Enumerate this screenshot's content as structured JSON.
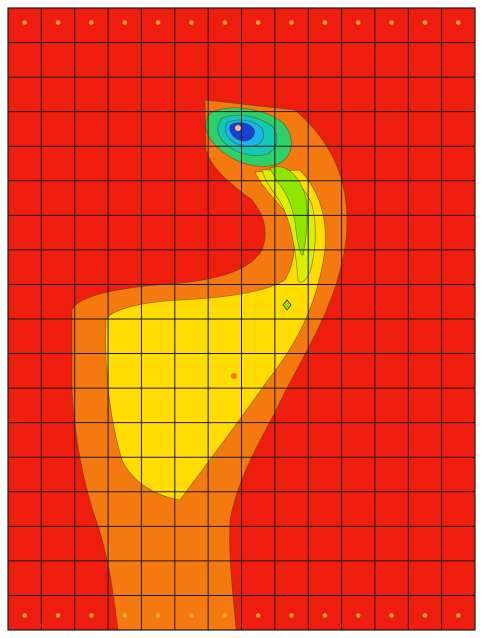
{
  "view": {
    "background": "#ffffff",
    "grid": {
      "columns": 14,
      "rows": 18,
      "line_color": "#1a1a1a",
      "node_marker_color": "#f2a33a"
    },
    "palette": {
      "red": "#ee1d0e",
      "orange": "#f47a10",
      "yellow": "#ffdd00",
      "yellow_green": "#d9f100",
      "light_green": "#8fe600",
      "green": "#2fd06a",
      "teal": "#12c9b6",
      "cyan": "#18b6ea",
      "blue": "#1a3fd6",
      "hotspot": "#f3c25a"
    }
  }
}
